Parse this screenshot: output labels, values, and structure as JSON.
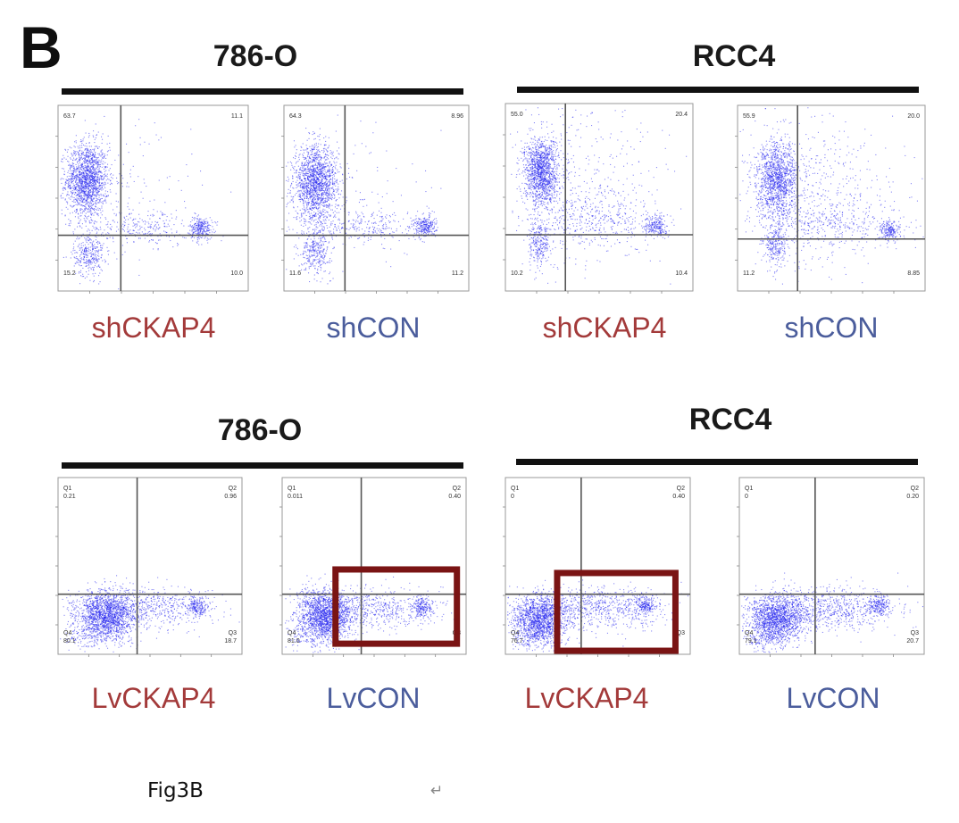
{
  "figure_letter": "B",
  "caption": "Fig3B",
  "return_mark": "↵",
  "colors": {
    "points": "#2222ee",
    "sh_knockdown_label": "#a33a3a",
    "control_label": "#4b5d9c",
    "highlight_box": "#7a1414",
    "group_bar": "#111111"
  },
  "chart_data": [
    {
      "type": "scatter",
      "group": "786-O",
      "label": "shCKAP4",
      "quadrants": {
        "ul": "63.7",
        "ur": "11.1",
        "ll": "15.2",
        "lr": "10.0"
      },
      "clusters": [
        {
          "x": 0.15,
          "y": 0.6,
          "sx": 0.055,
          "sy": 0.1,
          "w": 0.62
        },
        {
          "x": 0.16,
          "y": 0.2,
          "sx": 0.04,
          "sy": 0.06,
          "w": 0.12
        },
        {
          "x": 0.75,
          "y": 0.34,
          "sx": 0.03,
          "sy": 0.03,
          "w": 0.1
        },
        {
          "x": 0.45,
          "y": 0.34,
          "sx": 0.16,
          "sy": 0.05,
          "w": 0.1
        },
        {
          "x": 0.3,
          "y": 0.5,
          "sx": 0.2,
          "sy": 0.2,
          "w": 0.06
        }
      ]
    },
    {
      "type": "scatter",
      "group": "786-O",
      "label": "shCON",
      "quadrants": {
        "ul": "64.3",
        "ur": "8.96",
        "ll": "11.6",
        "lr": "11.2"
      },
      "clusters": [
        {
          "x": 0.17,
          "y": 0.58,
          "sx": 0.06,
          "sy": 0.1,
          "w": 0.62
        },
        {
          "x": 0.17,
          "y": 0.22,
          "sx": 0.04,
          "sy": 0.06,
          "w": 0.12
        },
        {
          "x": 0.76,
          "y": 0.35,
          "sx": 0.03,
          "sy": 0.03,
          "w": 0.1
        },
        {
          "x": 0.45,
          "y": 0.35,
          "sx": 0.16,
          "sy": 0.05,
          "w": 0.1
        },
        {
          "x": 0.3,
          "y": 0.5,
          "sx": 0.2,
          "sy": 0.2,
          "w": 0.06
        }
      ]
    },
    {
      "type": "scatter",
      "group": "RCC4",
      "label": "shCKAP4",
      "quadrants": {
        "ul": "55.0",
        "ur": "20.4",
        "ll": "10.2",
        "lr": "10.4"
      },
      "clusters": [
        {
          "x": 0.19,
          "y": 0.64,
          "sx": 0.045,
          "sy": 0.09,
          "w": 0.5
        },
        {
          "x": 0.18,
          "y": 0.25,
          "sx": 0.03,
          "sy": 0.06,
          "w": 0.1
        },
        {
          "x": 0.8,
          "y": 0.35,
          "sx": 0.03,
          "sy": 0.03,
          "w": 0.08
        },
        {
          "x": 0.48,
          "y": 0.38,
          "sx": 0.18,
          "sy": 0.07,
          "w": 0.14
        },
        {
          "x": 0.4,
          "y": 0.55,
          "sx": 0.23,
          "sy": 0.22,
          "w": 0.18
        }
      ]
    },
    {
      "type": "scatter",
      "group": "RCC4",
      "label": "shCON",
      "quadrants": {
        "ul": "55.9",
        "ur": "20.0",
        "ll": "11.2",
        "lr": "8.85"
      },
      "clusters": [
        {
          "x": 0.21,
          "y": 0.6,
          "sx": 0.055,
          "sy": 0.1,
          "w": 0.5
        },
        {
          "x": 0.2,
          "y": 0.25,
          "sx": 0.03,
          "sy": 0.06,
          "w": 0.1
        },
        {
          "x": 0.81,
          "y": 0.33,
          "sx": 0.03,
          "sy": 0.03,
          "w": 0.08
        },
        {
          "x": 0.5,
          "y": 0.37,
          "sx": 0.18,
          "sy": 0.07,
          "w": 0.14
        },
        {
          "x": 0.42,
          "y": 0.55,
          "sx": 0.23,
          "sy": 0.22,
          "w": 0.18
        }
      ]
    },
    {
      "type": "scatter",
      "group": "786-O",
      "label": "LvCKAP4",
      "quadrants": {
        "ul": "0.21",
        "ur": "0.96",
        "ll": "80.1",
        "lr": "18.7"
      },
      "quadrant_names": {
        "ul": "Q1",
        "ur": "Q2",
        "ll": "Q4",
        "lr": "Q3"
      },
      "clusters": [
        {
          "x": 0.26,
          "y": 0.22,
          "sx": 0.08,
          "sy": 0.07,
          "w": 0.66
        },
        {
          "x": 0.75,
          "y": 0.27,
          "sx": 0.03,
          "sy": 0.03,
          "w": 0.08
        },
        {
          "x": 0.5,
          "y": 0.26,
          "sx": 0.18,
          "sy": 0.06,
          "w": 0.22
        },
        {
          "x": 0.15,
          "y": 0.1,
          "sx": 0.06,
          "sy": 0.04,
          "w": 0.04
        }
      ]
    },
    {
      "type": "scatter",
      "group": "786-O",
      "label": "LvCON",
      "quadrants": {
        "ul": "0.011",
        "ur": "0.40",
        "ll": "81.0",
        "lr": ""
      },
      "quadrant_names": {
        "ul": "Q1",
        "ur": "Q2",
        "ll": "Q4",
        "lr": "Q3"
      },
      "clusters": [
        {
          "x": 0.23,
          "y": 0.22,
          "sx": 0.075,
          "sy": 0.07,
          "w": 0.66
        },
        {
          "x": 0.76,
          "y": 0.27,
          "sx": 0.03,
          "sy": 0.03,
          "w": 0.08
        },
        {
          "x": 0.5,
          "y": 0.26,
          "sx": 0.18,
          "sy": 0.06,
          "w": 0.22
        },
        {
          "x": 0.13,
          "y": 0.1,
          "sx": 0.06,
          "sy": 0.04,
          "w": 0.04
        }
      ],
      "highlight": {
        "x0": 0.29,
        "x1": 0.95,
        "y0": 0.06,
        "y1": 0.48
      }
    },
    {
      "type": "scatter",
      "group": "RCC4",
      "label": "LvCKAP4",
      "quadrants": {
        "ul": "0",
        "ur": "0.40",
        "ll": "76.7",
        "lr": ""
      },
      "quadrant_names": {
        "ul": "Q1",
        "ur": "Q2",
        "ll": "Q4",
        "lr": "Q3"
      },
      "clusters": [
        {
          "x": 0.18,
          "y": 0.2,
          "sx": 0.075,
          "sy": 0.07,
          "w": 0.6
        },
        {
          "x": 0.75,
          "y": 0.28,
          "sx": 0.03,
          "sy": 0.03,
          "w": 0.08
        },
        {
          "x": 0.5,
          "y": 0.26,
          "sx": 0.18,
          "sy": 0.06,
          "w": 0.28
        },
        {
          "x": 0.12,
          "y": 0.09,
          "sx": 0.05,
          "sy": 0.04,
          "w": 0.04
        }
      ],
      "highlight": {
        "x0": 0.28,
        "x1": 0.92,
        "y0": 0.02,
        "y1": 0.46
      }
    },
    {
      "type": "scatter",
      "group": "RCC4",
      "label": "LvCON",
      "quadrants": {
        "ul": "0",
        "ur": "0.20",
        "ll": "79.1",
        "lr": "20.7"
      },
      "quadrant_names": {
        "ul": "Q1",
        "ur": "Q2",
        "ll": "Q4",
        "lr": "Q3"
      },
      "clusters": [
        {
          "x": 0.2,
          "y": 0.2,
          "sx": 0.075,
          "sy": 0.07,
          "w": 0.62
        },
        {
          "x": 0.75,
          "y": 0.28,
          "sx": 0.03,
          "sy": 0.03,
          "w": 0.08
        },
        {
          "x": 0.5,
          "y": 0.26,
          "sx": 0.18,
          "sy": 0.06,
          "w": 0.26
        },
        {
          "x": 0.12,
          "y": 0.09,
          "sx": 0.05,
          "sy": 0.04,
          "w": 0.04
        }
      ]
    }
  ],
  "groups": [
    {
      "title": "786-O"
    },
    {
      "title": "RCC4"
    },
    {
      "title": "786-O"
    },
    {
      "title": "RCC4"
    }
  ]
}
